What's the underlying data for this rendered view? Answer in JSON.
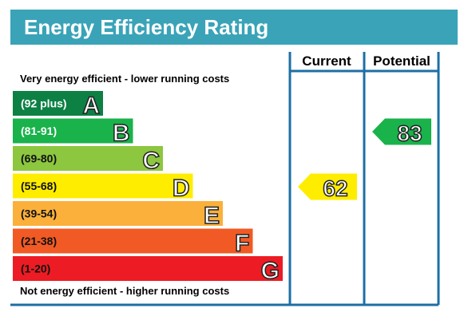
{
  "title": "Energy Efficiency Rating",
  "columns": {
    "current": "Current",
    "potential": "Potential"
  },
  "top_note": "Very energy efficient - lower running costs",
  "bottom_note": "Not energy efficient - higher running costs",
  "colors": {
    "header": "#3aa3b8",
    "frame": "#1d6fa5",
    "letter_stroke": "#222222"
  },
  "chart_data": {
    "type": "bar",
    "title": "Energy Efficiency Rating",
    "categories": [
      "A",
      "B",
      "C",
      "D",
      "E",
      "F",
      "G"
    ],
    "bands": [
      {
        "letter": "A",
        "range": "(92 plus)",
        "min": 92,
        "max": 100,
        "color": "#0d8044",
        "text_color": "#ffffff"
      },
      {
        "letter": "B",
        "range": "(81-91)",
        "min": 81,
        "max": 91,
        "color": "#19b24b",
        "text_color": "#ffffff"
      },
      {
        "letter": "C",
        "range": "(69-80)",
        "min": 69,
        "max": 80,
        "color": "#8dc63f",
        "text_color": "#111111"
      },
      {
        "letter": "D",
        "range": "(55-68)",
        "min": 55,
        "max": 68,
        "color": "#ffed00",
        "text_color": "#111111"
      },
      {
        "letter": "E",
        "range": "(39-54)",
        "min": 39,
        "max": 54,
        "color": "#fbb03b",
        "text_color": "#111111"
      },
      {
        "letter": "F",
        "range": "(21-38)",
        "min": 21,
        "max": 38,
        "color": "#f15a24",
        "text_color": "#111111"
      },
      {
        "letter": "G",
        "range": "(1-20)",
        "min": 1,
        "max": 20,
        "color": "#ed1c24",
        "text_color": "#111111"
      }
    ],
    "current": {
      "value": 62,
      "band": "D",
      "color": "#ffed00"
    },
    "potential": {
      "value": 83,
      "band": "B",
      "color": "#19b24b"
    }
  }
}
